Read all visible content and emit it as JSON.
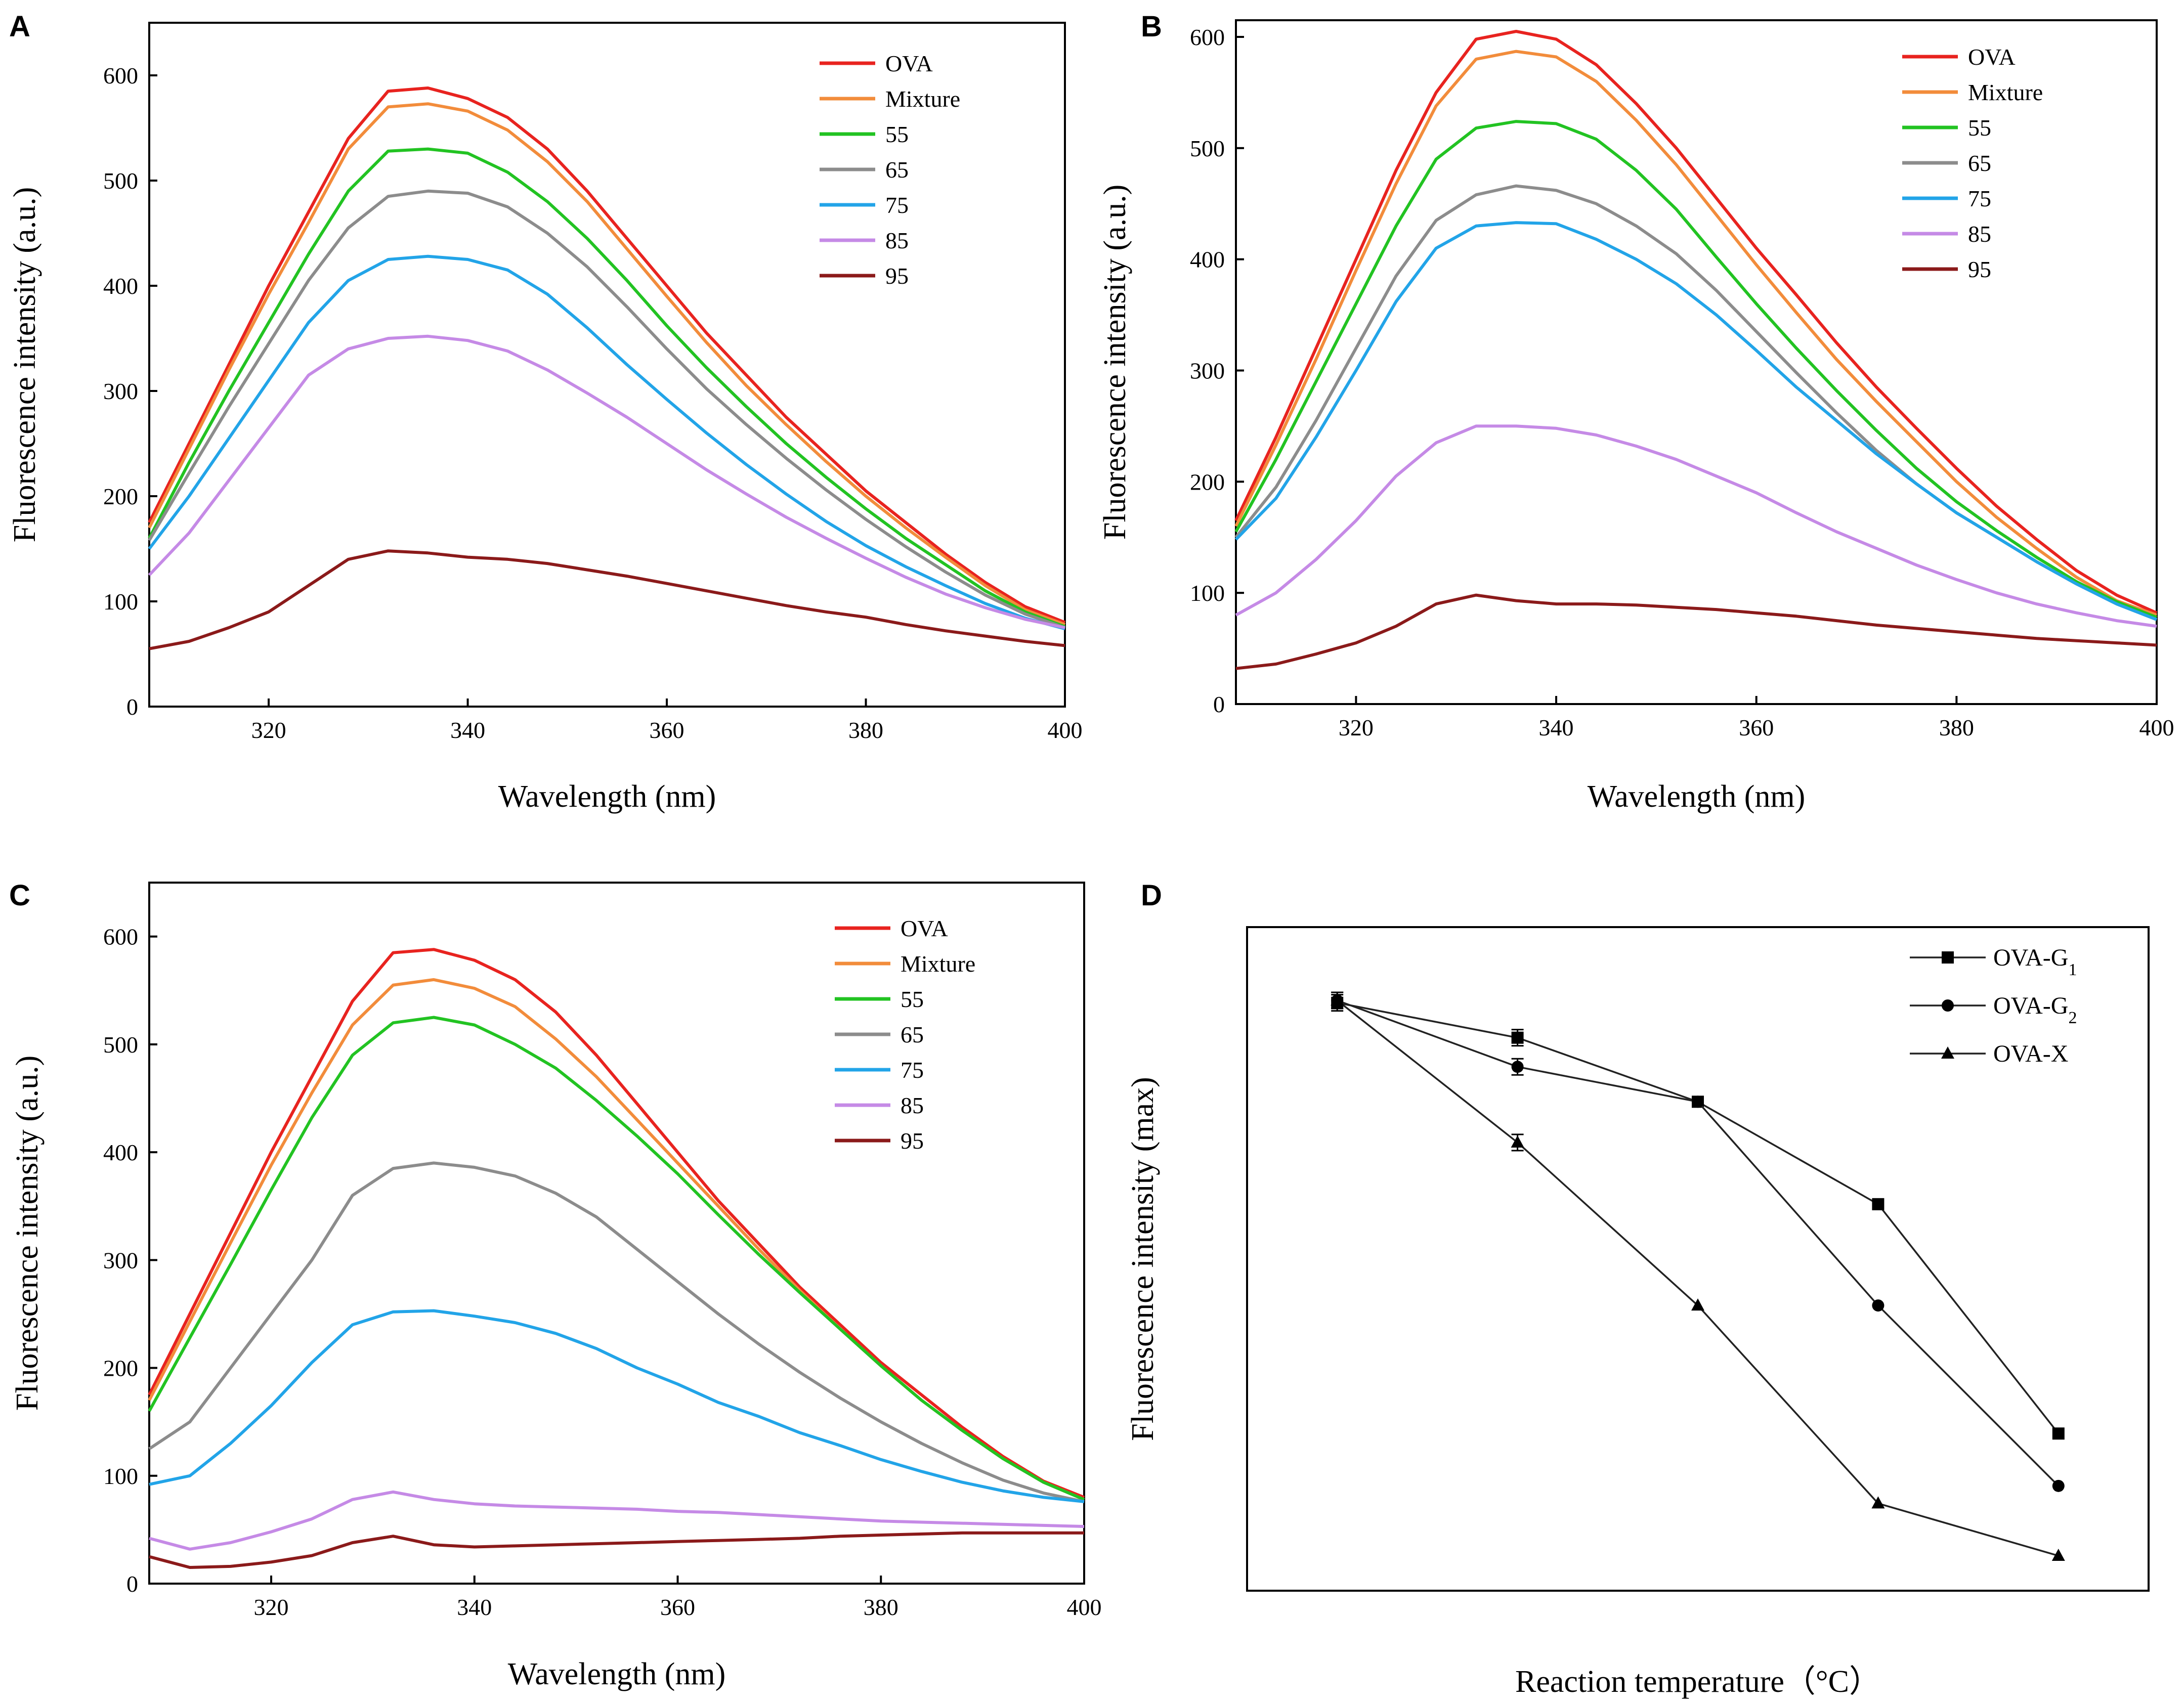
{
  "figure": {
    "x_unit_label": "Wavelength (nm)",
    "y_unit_label": "Fluorescence intensity (a.u.)"
  },
  "series_colors": {
    "OVA": "#e8231f",
    "Mixture": "#f28c3b",
    "55": "#22c322",
    "65": "#8c8c8c",
    "75": "#22a4e8",
    "85": "#c58ae6",
    "95": "#8b1a1a"
  },
  "chart_data": [
    {
      "panel": "A",
      "type": "line",
      "title": "",
      "xlabel": "Wavelength (nm)",
      "ylabel": "Fluorescence intensity (a.u.)",
      "xlim": [
        308,
        400
      ],
      "ylim": [
        0,
        650
      ],
      "xticks": [
        320,
        340,
        360,
        380,
        400
      ],
      "yticks": [
        0,
        100,
        200,
        300,
        400,
        500,
        600
      ],
      "legend": "top-right",
      "x": [
        308,
        312,
        316,
        320,
        324,
        328,
        332,
        336,
        340,
        344,
        348,
        352,
        356,
        360,
        364,
        368,
        372,
        376,
        380,
        384,
        388,
        392,
        396,
        400
      ],
      "series": [
        {
          "name": "OVA",
          "values": [
            175,
            250,
            325,
            400,
            470,
            540,
            585,
            588,
            578,
            560,
            530,
            490,
            445,
            400,
            355,
            315,
            275,
            240,
            205,
            175,
            145,
            118,
            95,
            80
          ]
        },
        {
          "name": "Mixture",
          "values": [
            170,
            245,
            320,
            392,
            460,
            530,
            570,
            573,
            566,
            548,
            518,
            480,
            435,
            390,
            346,
            305,
            268,
            233,
            200,
            170,
            142,
            115,
            92,
            78
          ]
        },
        {
          "name": "55",
          "values": [
            160,
            232,
            300,
            365,
            430,
            490,
            528,
            530,
            526,
            508,
            480,
            445,
            405,
            362,
            322,
            285,
            250,
            218,
            188,
            160,
            135,
            110,
            90,
            76
          ]
        },
        {
          "name": "65",
          "values": [
            158,
            222,
            285,
            345,
            405,
            455,
            485,
            490,
            488,
            475,
            450,
            418,
            380,
            340,
            302,
            268,
            236,
            206,
            178,
            152,
            128,
            106,
            88,
            75
          ]
        },
        {
          "name": "75",
          "values": [
            150,
            200,
            255,
            310,
            365,
            405,
            425,
            428,
            425,
            415,
            392,
            360,
            325,
            292,
            260,
            230,
            202,
            176,
            153,
            133,
            115,
            98,
            84,
            74
          ]
        },
        {
          "name": "85",
          "values": [
            125,
            165,
            215,
            265,
            315,
            340,
            350,
            352,
            348,
            338,
            320,
            298,
            275,
            250,
            225,
            202,
            180,
            160,
            141,
            123,
            107,
            94,
            83,
            75
          ]
        },
        {
          "name": "95",
          "values": [
            55,
            62,
            75,
            90,
            115,
            140,
            148,
            146,
            142,
            140,
            136,
            130,
            124,
            117,
            110,
            103,
            96,
            90,
            85,
            78,
            72,
            67,
            62,
            58
          ]
        }
      ]
    },
    {
      "panel": "B",
      "type": "line",
      "title": "",
      "xlabel": "Wavelength (nm)",
      "ylabel": "Fluorescence intensity (a.u.)",
      "xlim": [
        308,
        400
      ],
      "ylim": [
        0,
        615
      ],
      "xticks": [
        320,
        340,
        360,
        380,
        400
      ],
      "yticks": [
        0,
        100,
        200,
        300,
        400,
        500,
        600
      ],
      "legend": "top-right",
      "x": [
        308,
        312,
        316,
        320,
        324,
        328,
        332,
        336,
        340,
        344,
        348,
        352,
        356,
        360,
        364,
        368,
        372,
        376,
        380,
        384,
        388,
        392,
        396,
        400
      ],
      "series": [
        {
          "name": "OVA",
          "values": [
            165,
            240,
            320,
            400,
            480,
            550,
            598,
            605,
            598,
            575,
            540,
            500,
            455,
            410,
            368,
            325,
            285,
            248,
            212,
            178,
            148,
            120,
            98,
            82
          ]
        },
        {
          "name": "Mixture",
          "values": [
            160,
            233,
            310,
            390,
            468,
            538,
            580,
            587,
            582,
            560,
            525,
            485,
            440,
            395,
            352,
            310,
            272,
            236,
            200,
            168,
            140,
            114,
            93,
            80
          ]
        },
        {
          "name": "55",
          "values": [
            155,
            220,
            290,
            360,
            430,
            490,
            518,
            524,
            522,
            508,
            480,
            445,
            402,
            360,
            320,
            282,
            246,
            212,
            182,
            156,
            132,
            110,
            92,
            78
          ]
        },
        {
          "name": "65",
          "values": [
            150,
            195,
            255,
            320,
            385,
            435,
            458,
            466,
            462,
            450,
            430,
            405,
            372,
            335,
            298,
            262,
            228,
            198,
            172,
            150,
            128,
            108,
            90,
            76
          ]
        },
        {
          "name": "75",
          "values": [
            148,
            185,
            240,
            300,
            362,
            410,
            430,
            433,
            432,
            418,
            400,
            378,
            350,
            318,
            285,
            255,
            225,
            198,
            172,
            150,
            128,
            108,
            90,
            76
          ]
        },
        {
          "name": "85",
          "values": [
            80,
            100,
            130,
            165,
            205,
            235,
            250,
            250,
            248,
            242,
            232,
            220,
            205,
            190,
            172,
            155,
            140,
            125,
            112,
            100,
            90,
            82,
            75,
            70
          ]
        },
        {
          "name": "95",
          "values": [
            32,
            36,
            45,
            55,
            70,
            90,
            98,
            93,
            90,
            90,
            89,
            87,
            85,
            82,
            79,
            75,
            71,
            68,
            65,
            62,
            59,
            57,
            55,
            53
          ]
        }
      ]
    },
    {
      "panel": "C",
      "type": "line",
      "title": "",
      "xlabel": "Wavelength (nm)",
      "ylabel": "Fluorescence intensity (a.u.)",
      "xlim": [
        308,
        400
      ],
      "ylim": [
        0,
        650
      ],
      "xticks": [
        320,
        340,
        360,
        380,
        400
      ],
      "yticks": [
        0,
        100,
        200,
        300,
        400,
        500,
        600
      ],
      "legend": "top-right",
      "x": [
        308,
        312,
        316,
        320,
        324,
        328,
        332,
        336,
        340,
        344,
        348,
        352,
        356,
        360,
        364,
        368,
        372,
        376,
        380,
        384,
        388,
        392,
        396,
        400
      ],
      "series": [
        {
          "name": "OVA",
          "values": [
            175,
            250,
            325,
            400,
            470,
            540,
            585,
            588,
            578,
            560,
            530,
            490,
            445,
            400,
            355,
            315,
            275,
            240,
            205,
            175,
            145,
            118,
            95,
            80
          ]
        },
        {
          "name": "Mixture",
          "values": [
            170,
            243,
            316,
            388,
            455,
            518,
            555,
            560,
            552,
            535,
            505,
            470,
            430,
            390,
            350,
            310,
            272,
            236,
            202,
            170,
            142,
            116,
            94,
            78
          ]
        },
        {
          "name": "55",
          "values": [
            160,
            228,
            296,
            365,
            432,
            490,
            520,
            525,
            518,
            500,
            478,
            448,
            415,
            380,
            342,
            305,
            270,
            236,
            202,
            170,
            142,
            116,
            94,
            78
          ]
        },
        {
          "name": "65",
          "values": [
            125,
            150,
            200,
            250,
            300,
            360,
            385,
            390,
            386,
            378,
            362,
            340,
            310,
            280,
            250,
            222,
            196,
            172,
            150,
            130,
            112,
            96,
            84,
            76
          ]
        },
        {
          "name": "75",
          "values": [
            92,
            100,
            130,
            165,
            205,
            240,
            252,
            253,
            248,
            242,
            232,
            218,
            200,
            185,
            168,
            155,
            140,
            128,
            115,
            104,
            94,
            86,
            80,
            76
          ]
        },
        {
          "name": "85",
          "values": [
            42,
            32,
            38,
            48,
            60,
            78,
            85,
            78,
            74,
            72,
            71,
            70,
            69,
            67,
            66,
            64,
            62,
            60,
            58,
            57,
            56,
            55,
            54,
            53
          ]
        },
        {
          "name": "95",
          "values": [
            25,
            15,
            16,
            20,
            26,
            38,
            44,
            36,
            34,
            35,
            36,
            37,
            38,
            39,
            40,
            41,
            42,
            44,
            45,
            46,
            47,
            47,
            47,
            47
          ]
        }
      ]
    },
    {
      "panel": "D",
      "type": "line",
      "title": "",
      "xlabel": "Reaction temperature（°C）",
      "ylabel": "Fluorescence intensity (max)",
      "xlim": [
        0.5,
        5.5
      ],
      "ylim": [
        80,
        650
      ],
      "xticks": [],
      "yticks": [],
      "legend": "top-right",
      "x": [
        1,
        2,
        3,
        4,
        5
      ],
      "series": [
        {
          "name": "OVA-G",
          "subscript": "1",
          "marker": "square",
          "values": [
            585,
            555,
            500,
            412,
            215
          ]
        },
        {
          "name": "OVA-G",
          "subscript": "2",
          "marker": "circle",
          "values": [
            587,
            530,
            500,
            325,
            170
          ]
        },
        {
          "name": "OVA-X",
          "subscript": "",
          "marker": "triangle",
          "values": [
            587,
            465,
            325,
            155,
            110
          ]
        }
      ],
      "error_bar_points": [
        "1",
        "2"
      ]
    }
  ],
  "panels": {
    "A": {
      "label": "A"
    },
    "B": {
      "label": "B"
    },
    "C": {
      "label": "C"
    },
    "D": {
      "label": "D"
    }
  }
}
